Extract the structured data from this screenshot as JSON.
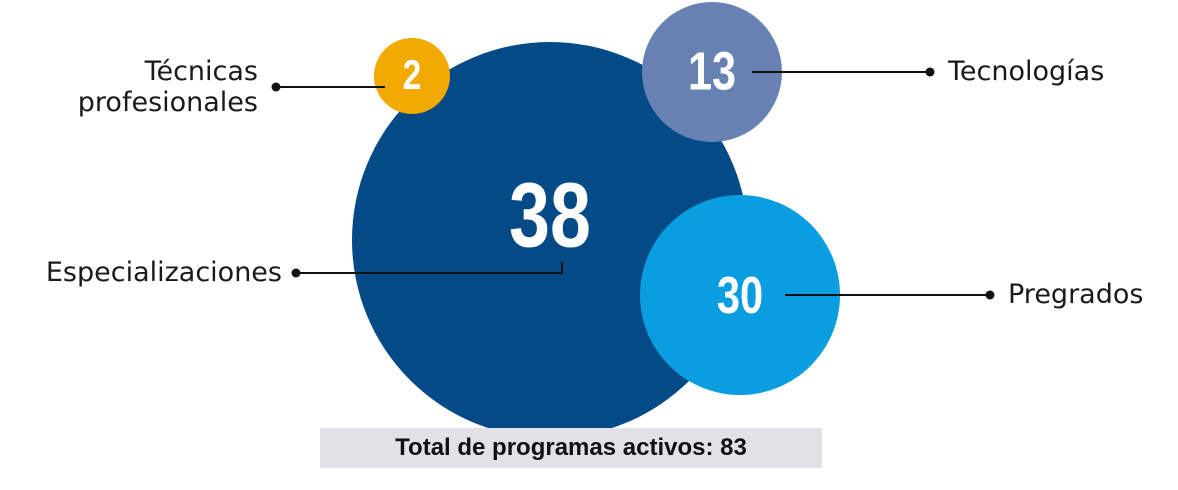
{
  "chart_data": {
    "type": "bubble",
    "series": [
      {
        "name": "Especializaciones",
        "color": "#034a87",
        "values": [
          38
        ]
      },
      {
        "name": "Técnicas profesionales",
        "color": "#f2a900",
        "values": [
          2
        ]
      },
      {
        "name": "Tecnologías",
        "color": "#6681b2",
        "values": [
          13
        ]
      },
      {
        "name": "Pregrados",
        "color": "#0a9ee0",
        "values": [
          30
        ]
      }
    ],
    "footer": "Total de programas activos: 83"
  }
}
